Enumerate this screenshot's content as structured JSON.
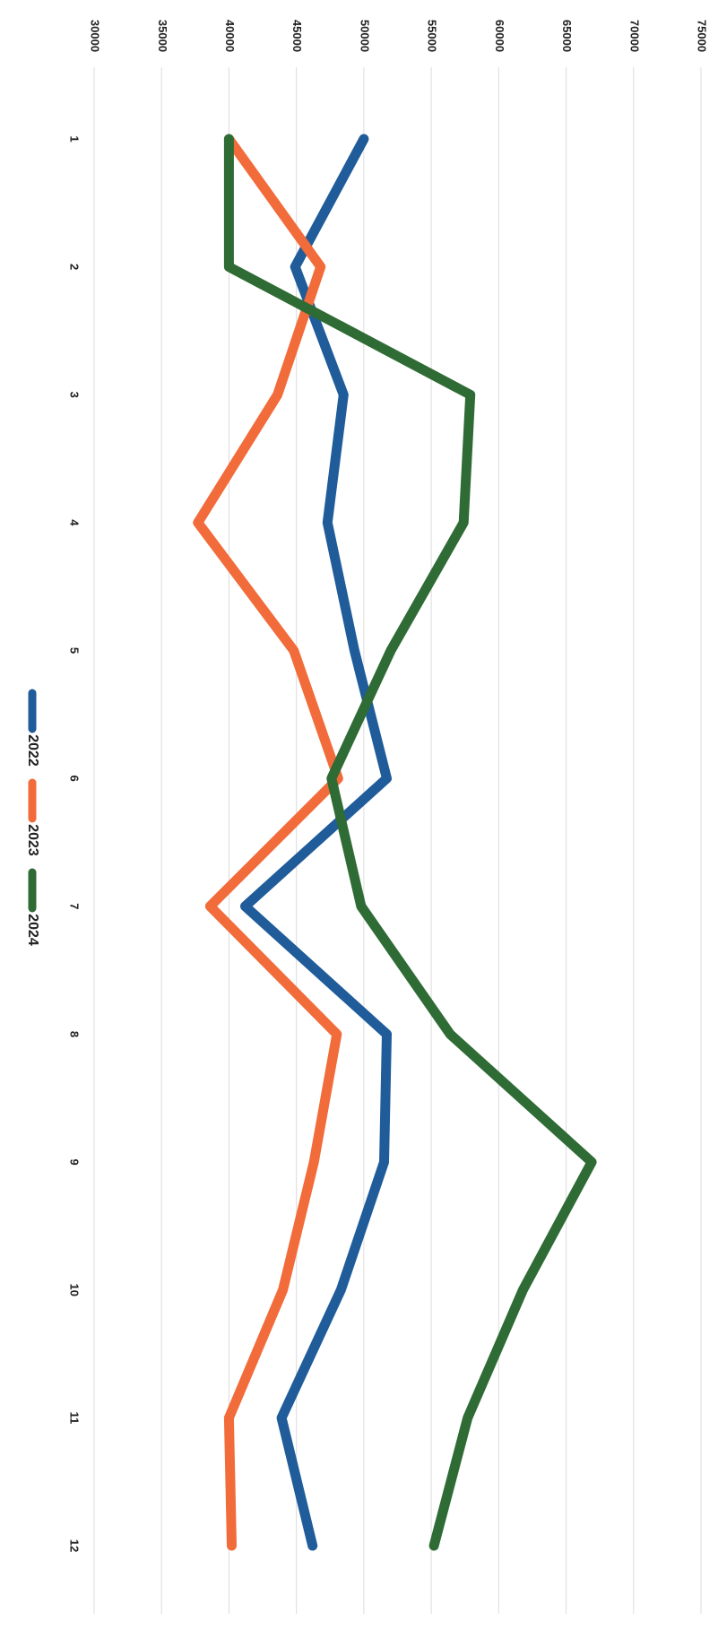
{
  "chart_data": {
    "type": "line",
    "title": "",
    "xlabel": "",
    "ylabel": "",
    "categories": [
      "1",
      "2",
      "3",
      "4",
      "5",
      "6",
      "7",
      "8",
      "9",
      "10",
      "11",
      "12"
    ],
    "ylim": [
      30000,
      75000
    ],
    "y_ticks": [
      "30000",
      "35000",
      "40000",
      "45000",
      "50000",
      "55000",
      "60000",
      "65000",
      "70000",
      "75000"
    ],
    "grid": true,
    "orientation": "rotated 90 degrees clockwise",
    "legend_position": "bottom",
    "series": [
      {
        "name": "2022",
        "color": "#1f5c99",
        "values": [
          50000,
          44900,
          48500,
          47300,
          49300,
          51700,
          41200,
          51700,
          51500,
          48300,
          43900,
          46200
        ]
      },
      {
        "name": "2023",
        "color": "#f26b3a",
        "values": [
          40000,
          46800,
          43600,
          37700,
          44800,
          48100,
          38600,
          48000,
          46300,
          44000,
          40000,
          40200
        ]
      },
      {
        "name": "2024",
        "color": "#2f6b35",
        "values": [
          40000,
          40000,
          57900,
          57400,
          52000,
          47600,
          49800,
          56400,
          66900,
          61800,
          57700,
          55200
        ]
      }
    ]
  }
}
